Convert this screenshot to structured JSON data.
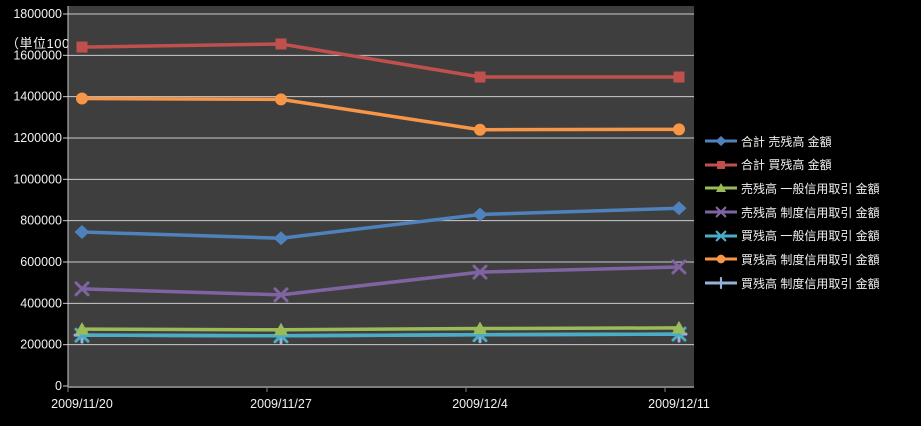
{
  "unit_label": "（単位100万円）",
  "colors": {
    "background": "#000000",
    "plot_bg": "#3e3e3e",
    "gridline": "#cbcbcb",
    "axis_line": "#7f7f7f",
    "label_text": "#f2f2f2"
  },
  "chart_data": {
    "type": "line",
    "title": "",
    "xlabel": "",
    "ylabel": "",
    "unit_note": "（単位100万円）",
    "x": [
      "2009/11/20",
      "2009/11/27",
      "2009/12/4",
      "2009/12/11"
    ],
    "ylim": [
      0,
      1800000
    ],
    "ytick_step": 200000,
    "yticks": [
      0,
      200000,
      400000,
      600000,
      800000,
      1000000,
      1200000,
      1400000,
      1600000,
      1800000
    ],
    "grid": true,
    "legend_position": "right",
    "series": [
      {
        "name": "合計 売残高 金額",
        "color": "#4f81bd",
        "marker": "diamond",
        "values": [
          745000,
          715000,
          830000,
          860000
        ]
      },
      {
        "name": "合計 買残高 金額",
        "color": "#c0504d",
        "marker": "square",
        "values": [
          1640000,
          1655000,
          1495000,
          1495000
        ]
      },
      {
        "name": "売残高 一般信用取引 金額",
        "color": "#9bbb59",
        "marker": "triangle",
        "values": [
          275000,
          272000,
          278000,
          281000
        ]
      },
      {
        "name": "売残高 制度信用取引 金額",
        "color": "#8064a2",
        "marker": "x",
        "values": [
          470000,
          441000,
          551000,
          576000
        ]
      },
      {
        "name": "買残高 一般信用取引 金額",
        "color": "#4bacc6",
        "marker": "x",
        "values": [
          246000,
          243000,
          248000,
          251000
        ]
      },
      {
        "name": "買残高 制度信用取引 金額",
        "color": "#f79646",
        "marker": "circle",
        "values": [
          1391000,
          1387000,
          1240000,
          1242000
        ]
      },
      {
        "name": "買残高 制度信用取引 金額",
        "color": "#95b3d7",
        "marker": "plus",
        "values": [
          246000,
          243000,
          248000,
          251000
        ]
      }
    ]
  }
}
